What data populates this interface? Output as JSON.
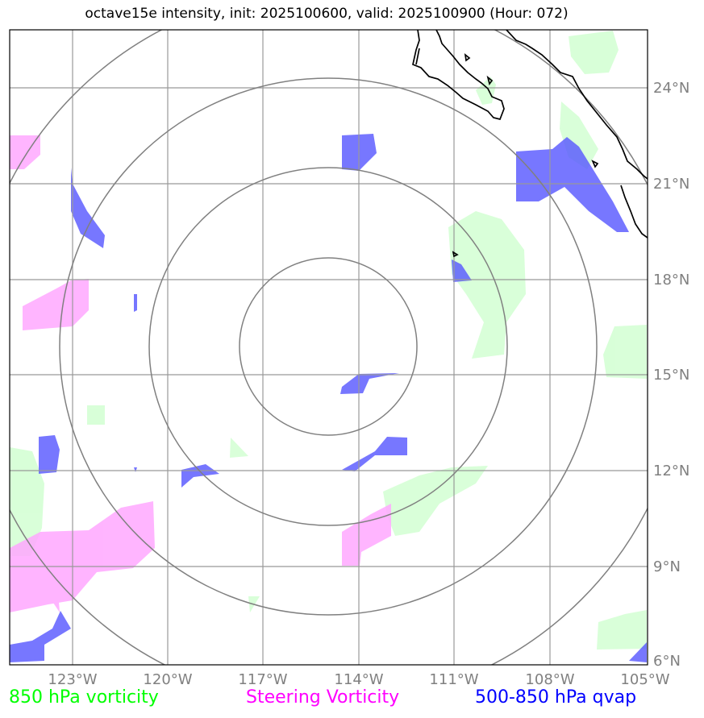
{
  "title": "octave15e intensity, init: 2025100600, valid: 2025100900 (Hour: 072)",
  "x_tick_labels": [
    "123°W",
    "120°W",
    "117°W",
    "114°W",
    "111°W",
    "108°W",
    "105°W"
  ],
  "y_tick_labels": [
    "24°N",
    "21°N",
    "18°N",
    "15°N",
    "12°N",
    "9°N",
    "6°N"
  ],
  "legend": {
    "green": "850 hPa vorticity",
    "magenta": "Steering Vorticity",
    "blue": "500-850 hPa qvap"
  },
  "colors": {
    "green_text": "#00ff00",
    "magenta_text": "#ff00ff",
    "blue_text": "#0000ff",
    "green_fill": "#ccffcc",
    "magenta_fill": "#ffa8ff",
    "blue_fill": "#5555ff",
    "grid": "#999999",
    "tick_text": "#808080"
  }
}
